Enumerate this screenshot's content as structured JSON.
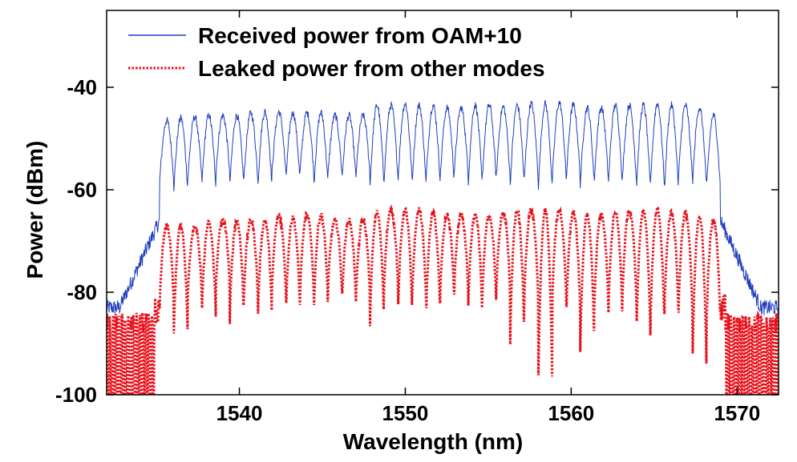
{
  "chart_data": {
    "type": "line",
    "title": "",
    "xlabel": "Wavelength (nm)",
    "ylabel": "Power (dBm)",
    "xlim": [
      1532,
      1572.5
    ],
    "ylim": [
      -100,
      -25
    ],
    "xticks": [
      1540,
      1550,
      1560,
      1570
    ],
    "yticks": [
      -40,
      -60,
      -80,
      -100
    ],
    "grid": false,
    "legend_position": "top-left",
    "channel_count": 40,
    "channel_band_nm": [
      1535.2,
      1569.0
    ],
    "series": [
      {
        "name": "Received power from OAM+10",
        "color": "#1f3fbf",
        "style": "solid",
        "channel_peaks_dBm": [
          -46.5,
          -46,
          -45.8,
          -45.5,
          -45.5,
          -45.5,
          -45,
          -44.8,
          -44.8,
          -45,
          -45,
          -45,
          -45.5,
          -45.5,
          -45.5,
          -43.5,
          -43.5,
          -43.2,
          -43.5,
          -43.5,
          -44,
          -44,
          -43.5,
          -43.5,
          -43.8,
          -43.5,
          -43.2,
          -43.2,
          -43,
          -43.5,
          -44,
          -44,
          -43.5,
          -43.5,
          -43.5,
          -43.2,
          -43.5,
          -43.5,
          -44,
          -45.5
        ],
        "channel_troughs_dBm": [
          -58,
          -60,
          -58,
          -59,
          -57,
          -59,
          -58,
          -59,
          -57,
          -58,
          -57,
          -59,
          -57,
          -58,
          -57,
          -59,
          -58,
          -58,
          -59,
          -58,
          -58,
          -57,
          -59,
          -58,
          -58,
          -59,
          -58,
          -60,
          -58,
          -58,
          -59,
          -58,
          -59,
          -58,
          -60,
          -59,
          -60,
          -58,
          -59,
          -60
        ],
        "floor_outside_band_dBm": -83
      },
      {
        "name": "Leaked power from other modes",
        "color": "#e8101a",
        "style": "dotted",
        "channel_peaks_dBm": [
          -67,
          -67,
          -67,
          -66.5,
          -66,
          -66,
          -66,
          -66,
          -65,
          -65.5,
          -65,
          -65,
          -66,
          -66,
          -66,
          -64.5,
          -64,
          -64,
          -64,
          -64.5,
          -65,
          -65,
          -65,
          -65,
          -64.5,
          -64,
          -64,
          -64,
          -64,
          -64.5,
          -65,
          -65,
          -64.5,
          -64,
          -64,
          -64,
          -64.5,
          -64.5,
          -65,
          -66
        ],
        "channel_troughs_dBm": [
          -83,
          -90,
          -82,
          -86,
          -80,
          -86,
          -82,
          -86,
          -81,
          -85,
          -82,
          -84,
          -81,
          -83,
          -82,
          -87,
          -80,
          -85,
          -83,
          -86,
          -82,
          -81,
          -85,
          -83,
          -82,
          -90,
          -83,
          -100,
          -83,
          -86,
          -92,
          -84,
          -86,
          -83,
          -90,
          -88,
          -85,
          -86,
          -96,
          -88
        ],
        "floor_outside_band_dBm": -96
      }
    ]
  }
}
